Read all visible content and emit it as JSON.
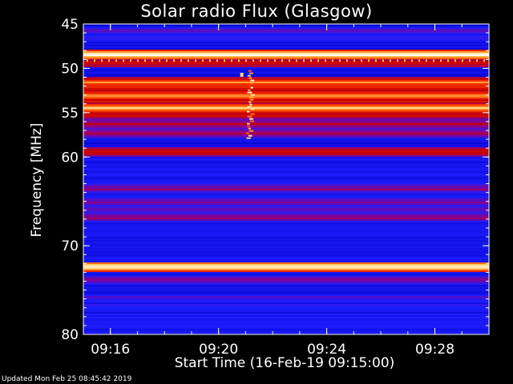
{
  "chart_data": {
    "type": "heatmap",
    "title": "Solar radio Flux (Glasgow)",
    "ylabel": "Frequency [MHz]",
    "xlabel": "Start Time (16-Feb-19 09:15:00)",
    "x_tick_labels": [
      "09:16",
      "09:20",
      "09:24",
      "09:28"
    ],
    "x_tick_minutes": [
      1,
      5,
      9,
      13
    ],
    "x_range_minutes": [
      0,
      15
    ],
    "y_tick_labels": [
      "45",
      "50",
      "55",
      "60",
      "70",
      "80"
    ],
    "y_tick_values": [
      45,
      50,
      55,
      60,
      70,
      80
    ],
    "y_range_mhz": [
      45,
      80
    ],
    "y_scale": "reversed",
    "colormap": [
      "#00006e",
      "#0000c8",
      "#1e1eff",
      "#8c008c",
      "#c80000",
      "#ff3c00",
      "#ffc850",
      "#ffffff"
    ],
    "bands": [
      {
        "mhz": 45.3,
        "level": 0.15
      },
      {
        "mhz": 45.7,
        "level": 0.35
      },
      {
        "mhz": 46.5,
        "level": 0.3
      },
      {
        "mhz": 47.5,
        "level": 0.25
      },
      {
        "mhz": 48.4,
        "level": 1.0
      },
      {
        "mhz": 49.3,
        "level": 0.62
      },
      {
        "mhz": 51.5,
        "level": 0.78
      },
      {
        "mhz": 52.0,
        "level": 0.7
      },
      {
        "mhz": 53.0,
        "level": 0.82
      },
      {
        "mhz": 53.6,
        "level": 0.65
      },
      {
        "mhz": 54.4,
        "level": 0.9
      },
      {
        "mhz": 55.2,
        "level": 0.6
      },
      {
        "mhz": 56.2,
        "level": 0.55
      },
      {
        "mhz": 57.2,
        "level": 0.5
      },
      {
        "mhz": 59.3,
        "level": 0.62
      },
      {
        "mhz": 63.5,
        "level": 0.45
      },
      {
        "mhz": 65.0,
        "level": 0.42
      },
      {
        "mhz": 65.7,
        "level": 0.4
      },
      {
        "mhz": 66.8,
        "level": 0.45
      },
      {
        "mhz": 72.3,
        "level": 1.0
      },
      {
        "mhz": 73.8,
        "level": 0.45
      },
      {
        "mhz": 75.8,
        "level": 0.35
      },
      {
        "mhz": 76.8,
        "level": 0.32
      }
    ],
    "burst": {
      "minute": 6.1,
      "mhz_start": 50.2,
      "mhz_end": 58.0
    }
  },
  "footer": "Updated Mon Feb 25 08:45:42 2019",
  "colors": {
    "background": "#000000",
    "text": "#ffffff"
  }
}
